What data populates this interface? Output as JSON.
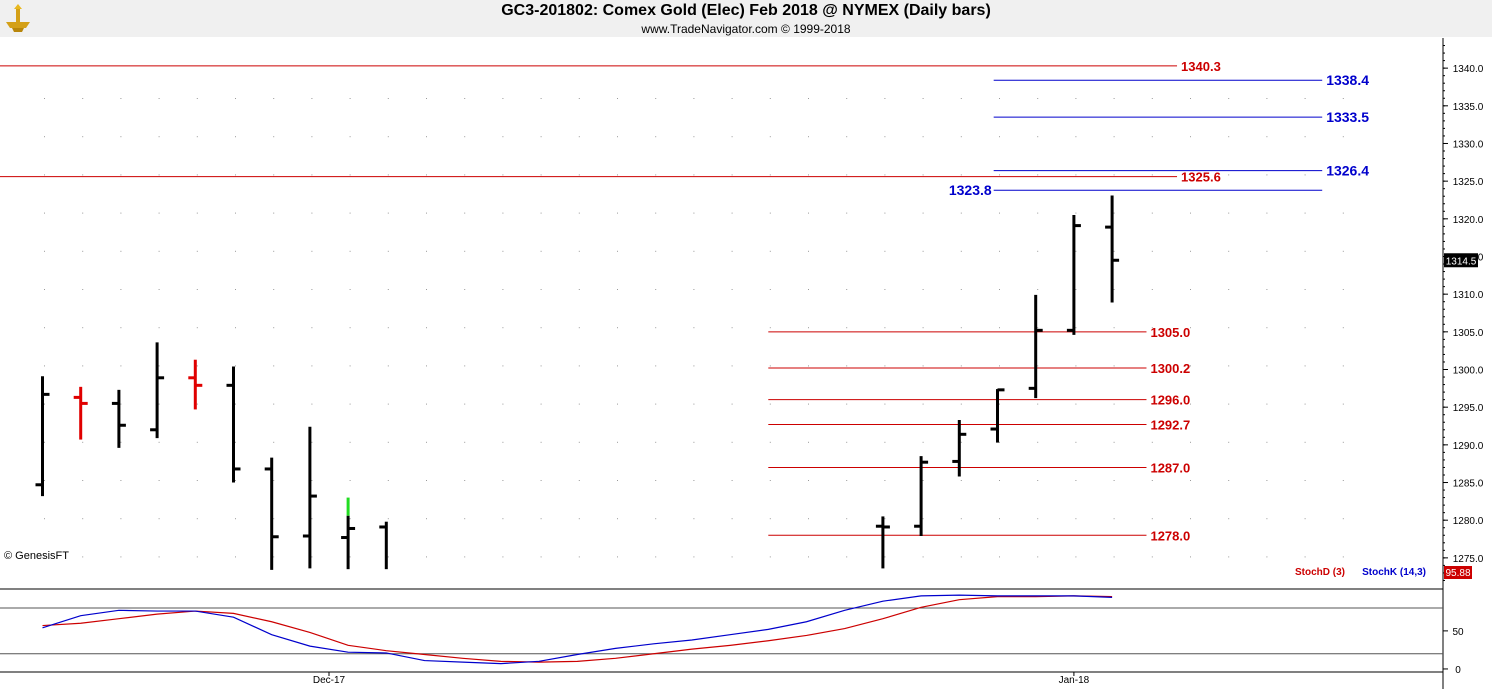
{
  "header": {
    "title": "GC3-201802:  Comex Gold (Elec) Feb 2018 @ NYMEX  (Daily bars)",
    "subtitle": "www.TradeNavigator.com © 1999-2018",
    "logo_icon": "gold-anvil-logo-icon"
  },
  "watermark": "© GenesisFT",
  "colors": {
    "bar": "#000000",
    "highlight_bar": "#e00000",
    "green_tick": "#22dd22",
    "red_level": "#cc0000",
    "blue_level": "#0000cc",
    "stoch_d": "#cc0000",
    "stoch_k": "#0000cc",
    "header_bg": "#f0f0f0",
    "grid_dot": "#9a9a9a"
  },
  "chart_data": [
    {
      "type": "ohlc",
      "title": "GC3-201802:  Comex Gold (Elec) Feb 2018 @ NYMEX  (Daily bars)",
      "ylim": [
        1271,
        1344
      ],
      "y_ticks": [
        "1275.0",
        "1280.0",
        "1285.0",
        "1290.0",
        "1295.0",
        "1300.0",
        "1305.0",
        "1310.0",
        "1315.0",
        "1320.0",
        "1325.0",
        "1330.0",
        "1335.0",
        "1340.0"
      ],
      "x_ticks": [
        {
          "label": "Dec-17",
          "bar_index": 7.5
        },
        {
          "label": "Jan-18",
          "bar_index": 27
        }
      ],
      "last_price_label": "1314.5",
      "bars": [
        {
          "o": 1284.7,
          "h": 1299.1,
          "l": 1283.2,
          "c": 1296.7
        },
        {
          "o": 1296.3,
          "h": 1297.7,
          "l": 1290.7,
          "c": 1295.5,
          "color": "red"
        },
        {
          "o": 1295.5,
          "h": 1297.3,
          "l": 1289.6,
          "c": 1292.6
        },
        {
          "o": 1292.0,
          "h": 1303.6,
          "l": 1290.9,
          "c": 1298.9
        },
        {
          "o": 1298.9,
          "h": 1301.3,
          "l": 1294.7,
          "c": 1297.9,
          "color": "red"
        },
        {
          "o": 1297.9,
          "h": 1300.4,
          "l": 1285.0,
          "c": 1286.8
        },
        {
          "o": 1286.8,
          "h": 1288.3,
          "l": 1273.4,
          "c": 1277.8
        },
        {
          "o": 1277.9,
          "h": 1292.4,
          "l": 1273.6,
          "c": 1283.2
        },
        {
          "o": 1277.7,
          "h": 1280.6,
          "l": 1273.5,
          "c": 1278.9,
          "green_low": 1280.6,
          "green_high": 1283.0
        },
        {
          "o": 1279.1,
          "h": 1279.8,
          "l": 1273.5,
          "c": null
        },
        {
          "o": 1279.2,
          "h": 1280.5,
          "l": 1273.6,
          "c": 1279.1
        },
        {
          "o": 1279.2,
          "h": 1288.5,
          "l": 1277.9,
          "c": 1287.7
        },
        {
          "o": 1287.8,
          "h": 1293.3,
          "l": 1285.8,
          "c": 1291.4
        },
        {
          "o": 1292.1,
          "h": 1297.4,
          "l": 1290.3,
          "c": 1297.3
        },
        {
          "o": 1297.5,
          "h": 1309.9,
          "l": 1296.2,
          "c": 1305.2
        },
        {
          "o": 1305.2,
          "h": 1320.5,
          "l": 1304.6,
          "c": 1319.1
        },
        {
          "o": 1318.9,
          "h": 1323.1,
          "l": 1308.9,
          "c": 1314.5
        }
      ],
      "bar_slots": [
        0,
        1,
        2,
        3,
        4,
        5,
        6,
        7,
        8,
        9,
        22,
        23,
        24,
        25,
        26,
        27,
        28
      ],
      "levels": [
        {
          "value": 1340.3,
          "label": "1340.3",
          "color": "red",
          "from_bar": -1,
          "to_bar": 29.7
        },
        {
          "value": 1338.4,
          "label": "1338.4",
          "color": "blue",
          "from_bar": 24.9,
          "to_bar": 33.5
        },
        {
          "value": 1333.5,
          "label": "1333.5",
          "color": "blue",
          "from_bar": 24.9,
          "to_bar": 33.5
        },
        {
          "value": 1326.4,
          "label": "1326.4",
          "color": "blue",
          "from_bar": 24.9,
          "to_bar": 33.5
        },
        {
          "value": 1325.6,
          "label": "1325.6",
          "color": "red",
          "from_bar": -1,
          "to_bar": 29.7
        },
        {
          "value": 1323.8,
          "label": "1323.8",
          "color": "blue",
          "from_bar": 24.9,
          "to_bar": 33.5,
          "label_left": true
        },
        {
          "value": 1305.0,
          "label": "1305.0",
          "color": "red",
          "from_bar": 19,
          "to_bar": 28.9
        },
        {
          "value": 1300.2,
          "label": "1300.2",
          "color": "red",
          "from_bar": 19,
          "to_bar": 28.9
        },
        {
          "value": 1296.0,
          "label": "1296.0",
          "color": "red",
          "from_bar": 19,
          "to_bar": 28.9
        },
        {
          "value": 1292.7,
          "label": "1292.7",
          "color": "red",
          "from_bar": 19,
          "to_bar": 28.9
        },
        {
          "value": 1287.0,
          "label": "1287.0",
          "color": "red",
          "from_bar": 19,
          "to_bar": 28.9
        },
        {
          "value": 1278.0,
          "label": "1278.0",
          "color": "red",
          "from_bar": 19,
          "to_bar": 28.9
        }
      ]
    },
    {
      "type": "line",
      "title": "",
      "ylim": [
        -4,
        105
      ],
      "y_ticks": [
        "0",
        "50"
      ],
      "reference_lines": [
        20,
        80
      ],
      "last_value_label": "95.88",
      "legend": [
        "StochD (3)",
        "StochK (14,3)"
      ],
      "series": [
        {
          "name": "StochD (3)",
          "color": "red",
          "x": [
            0,
            1,
            2,
            3,
            4,
            5,
            6,
            7,
            8,
            9,
            10,
            11,
            12,
            13,
            14,
            15,
            16,
            17,
            18,
            19,
            20,
            21,
            22,
            23,
            24,
            25,
            26,
            27,
            28
          ],
          "values": [
            57,
            60,
            66,
            72,
            76,
            73,
            62,
            48,
            31,
            24,
            19,
            14,
            10,
            9,
            10,
            14,
            20,
            26,
            31,
            37,
            44,
            53,
            66,
            81,
            91,
            95,
            95,
            96,
            95
          ]
        },
        {
          "name": "StochK (14,3)",
          "color": "blue",
          "x": [
            0,
            1,
            2,
            3,
            4,
            5,
            6,
            7,
            8,
            9,
            10,
            11,
            12,
            13,
            14,
            15,
            16,
            17,
            18,
            19,
            20,
            21,
            22,
            23,
            24,
            25,
            26,
            27,
            28
          ],
          "values": [
            54,
            70,
            77,
            76,
            76,
            68,
            45,
            30,
            22,
            21,
            11,
            9,
            7,
            10,
            19,
            27,
            33,
            38,
            45,
            52,
            62,
            77,
            89,
            96,
            97,
            96,
            96,
            96,
            94
          ]
        }
      ]
    }
  ]
}
